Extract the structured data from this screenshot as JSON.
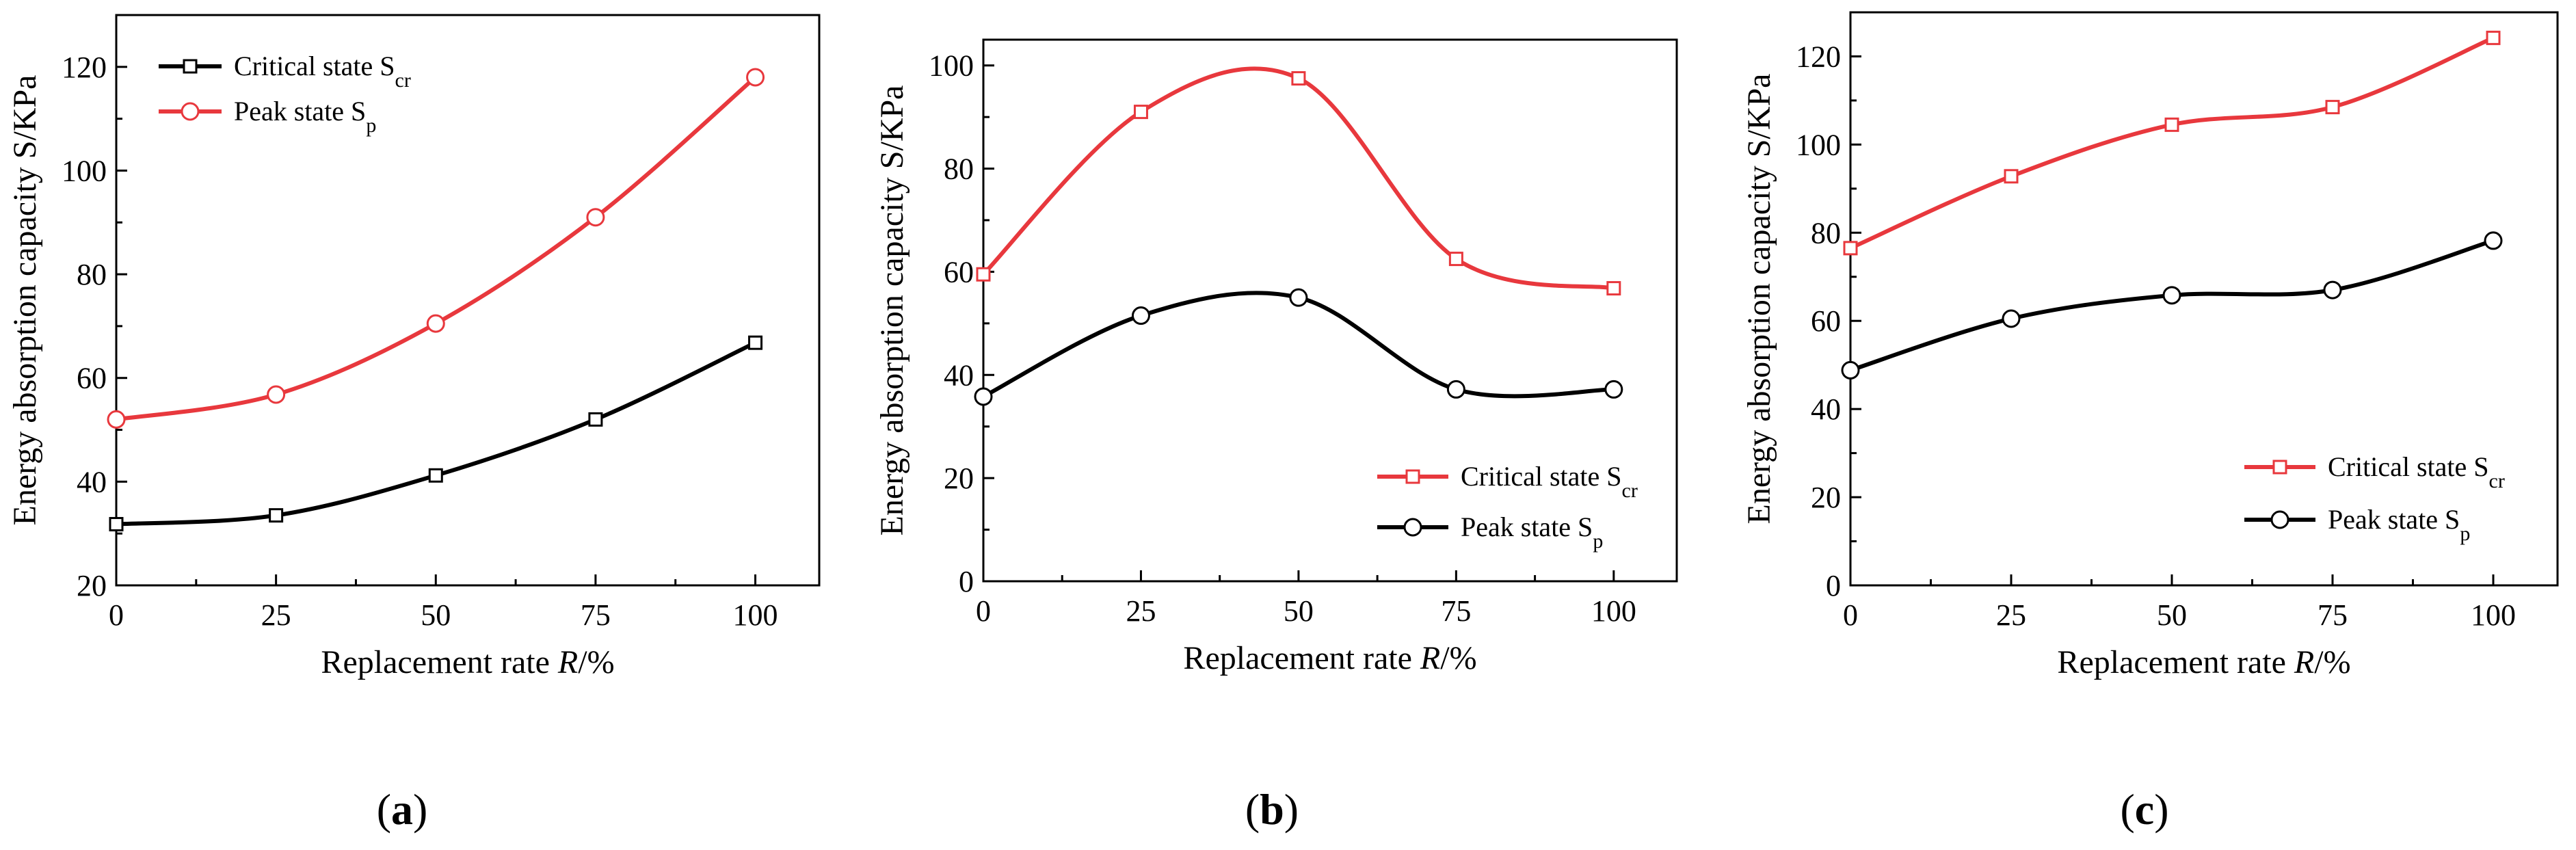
{
  "chart_data": [
    {
      "type": "line",
      "panel_label": "a",
      "xlabel": "Replacement rate",
      "xlabel_var": "R",
      "xlabel_unit": "/%",
      "ylabel": "Energy absorption capacity  S/KPa",
      "xlim": [
        0,
        110
      ],
      "ylim": [
        20,
        130
      ],
      "xticks": [
        0,
        25,
        50,
        75,
        100
      ],
      "yticks": [
        20,
        40,
        60,
        80,
        100,
        120
      ],
      "legend_position": "top-left",
      "series": [
        {
          "name": "Critical state S",
          "subscript": "cr",
          "color": "#000000",
          "marker": "square",
          "marker_fill": "#ffffff",
          "x": [
            0,
            25,
            50,
            75,
            100
          ],
          "values": [
            31.8,
            33.5,
            41.2,
            52.0,
            66.8
          ]
        },
        {
          "name": "Peak state  S",
          "subscript": "p",
          "color": "#e8383d",
          "marker": "circle",
          "marker_fill": "#ffffff",
          "x": [
            0,
            25,
            50,
            75,
            100
          ],
          "values": [
            52.0,
            56.8,
            70.5,
            91.0,
            118.0
          ]
        }
      ]
    },
    {
      "type": "line",
      "panel_label": "b",
      "xlabel": "Replacement rate",
      "xlabel_var": "R",
      "xlabel_unit": "/%",
      "ylabel": "Energy absorption capacity  S/KPa",
      "xlim": [
        0,
        110
      ],
      "ylim": [
        0,
        105
      ],
      "xticks": [
        0,
        25,
        50,
        75,
        100
      ],
      "yticks": [
        0,
        20,
        40,
        60,
        80,
        100
      ],
      "legend_position": "bottom-right",
      "series": [
        {
          "name": "Critical state S",
          "subscript": "cr",
          "color": "#e8383d",
          "marker": "square",
          "marker_fill": "#ffffff",
          "x": [
            0,
            25,
            50,
            75,
            100
          ],
          "values": [
            59.5,
            91.0,
            97.5,
            62.5,
            56.8
          ]
        },
        {
          "name": "Peak state  S",
          "subscript": "p",
          "color": "#000000",
          "marker": "circle",
          "marker_fill": "#ffffff",
          "x": [
            0,
            25,
            50,
            75,
            100
          ],
          "values": [
            35.8,
            51.5,
            55.0,
            37.2,
            37.2
          ]
        }
      ]
    },
    {
      "type": "line",
      "panel_label": "c",
      "xlabel": "Replacement rate",
      "xlabel_var": "R",
      "xlabel_unit": "/%",
      "ylabel": "Energy absorption capacity  S/KPa",
      "xlim": [
        0,
        110
      ],
      "ylim": [
        0,
        130
      ],
      "xticks": [
        0,
        25,
        50,
        75,
        100
      ],
      "yticks": [
        0,
        20,
        40,
        60,
        80,
        100,
        120
      ],
      "legend_position": "bottom-right",
      "series": [
        {
          "name": "Critical state S",
          "subscript": "cr",
          "color": "#e8383d",
          "marker": "square",
          "marker_fill": "#ffffff",
          "x": [
            0,
            25,
            50,
            75,
            100
          ],
          "values": [
            76.5,
            92.8,
            104.5,
            108.5,
            124.2
          ]
        },
        {
          "name": "Peak state  S",
          "subscript": "p",
          "color": "#000000",
          "marker": "circle",
          "marker_fill": "#ffffff",
          "x": [
            0,
            25,
            50,
            75,
            100
          ],
          "values": [
            48.8,
            60.5,
            65.8,
            67.0,
            78.2
          ]
        }
      ]
    }
  ]
}
